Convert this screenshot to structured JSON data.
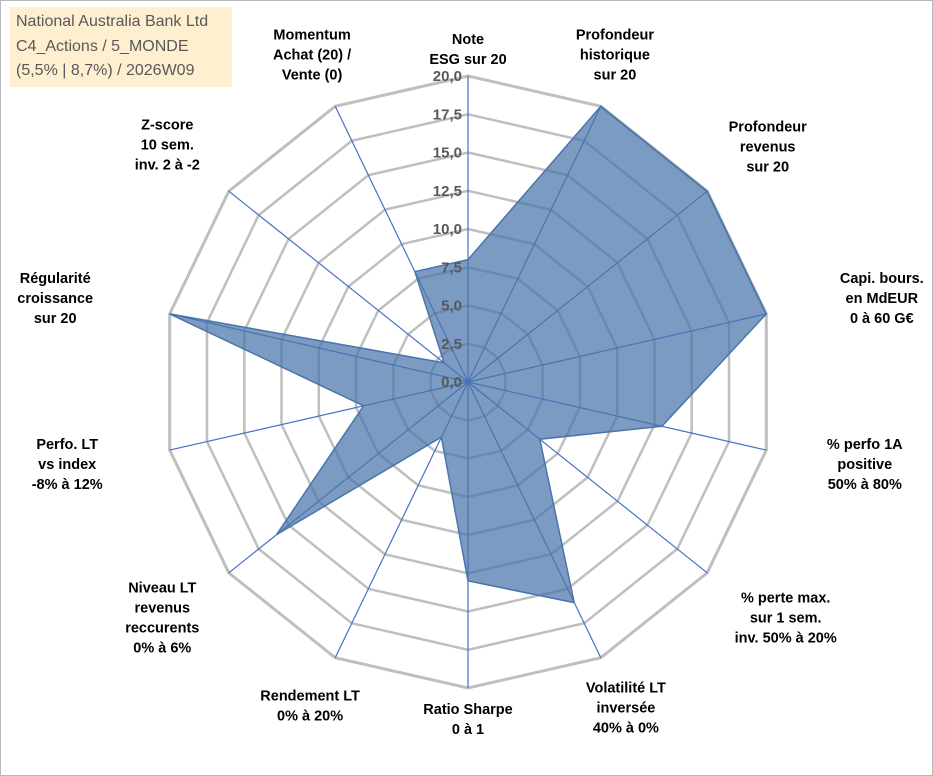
{
  "title": {
    "line1": "National Australia Bank Ltd",
    "line2": "C4_Actions / 5_MONDE",
    "line3": "(5,5% | 8,7%) / 2026W09"
  },
  "chart_data": {
    "type": "radar",
    "title": "National Australia Bank Ltd",
    "rmin": 0,
    "rmax": 20,
    "ticks": [
      "0,0",
      "2,5",
      "5,0",
      "7,5",
      "10,0",
      "12,5",
      "15,0",
      "17,5",
      "20,0"
    ],
    "tick_values": [
      0,
      2.5,
      5,
      7.5,
      10,
      12.5,
      15,
      17.5,
      20
    ],
    "axes": [
      {
        "label": [
          "Note",
          "ESG sur 20"
        ],
        "value": 8.0
      },
      {
        "label": [
          "Profondeur",
          "historique",
          "sur 20"
        ],
        "value": 20.0
      },
      {
        "label": [
          "Profondeur",
          "revenus",
          "sur 20"
        ],
        "value": 20.0
      },
      {
        "label": [
          "Capi. bours.",
          "en MdEUR",
          "0 à 60 G€"
        ],
        "value": 20.0
      },
      {
        "label": [
          "% perfo 1A",
          "positive",
          "50% à 80%"
        ],
        "value": 13.0
      },
      {
        "label": [
          "% perte max.",
          "sur 1 sem.",
          "inv. 50% à 20%"
        ],
        "value": 6.0
      },
      {
        "label": [
          "Volatilité LT",
          "inversée",
          "40% à 0%"
        ],
        "value": 16.0
      },
      {
        "label": [
          "Ratio Sharpe",
          "0 à 1"
        ],
        "value": 13.0
      },
      {
        "label": [
          "Rendement LT",
          "0% à 20%"
        ],
        "value": 4.0
      },
      {
        "label": [
          "Niveau LT",
          "revenus",
          "reccurents",
          "0% à 6%"
        ],
        "value": 16.0
      },
      {
        "label": [
          "Perfo. LT",
          "vs index",
          "-8% à 12%"
        ],
        "value": 7.0
      },
      {
        "label": [
          "Régularité",
          "croissance",
          "sur 20"
        ],
        "value": 20.0
      },
      {
        "label": [
          "Z-score",
          "10 sem.",
          "inv. 2 à -2"
        ],
        "value": 2.0
      },
      {
        "label": [
          "Momentum",
          "Achat (20) /",
          "Vente (0)"
        ],
        "value": 8.0
      }
    ],
    "series": [
      {
        "name": "National Australia Bank Ltd",
        "color": "#4a75ab",
        "fill": "#4a75ab"
      }
    ],
    "grid": true,
    "legend": "none"
  },
  "colors": {
    "grid": "#bfbfbf",
    "spoke": "#4472c4",
    "area": "#4a75ab",
    "title_bg": "#fdefcf"
  }
}
